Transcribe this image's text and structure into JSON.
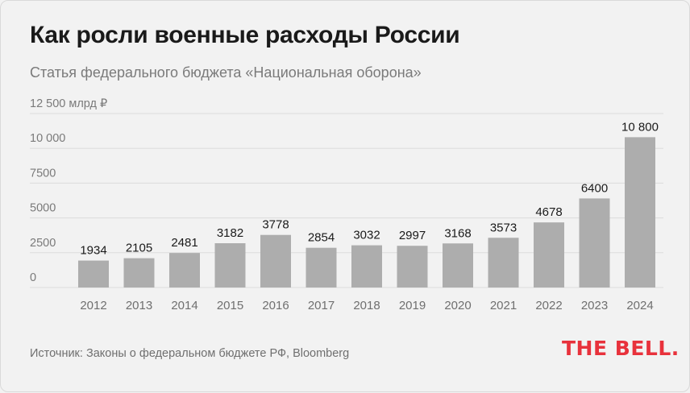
{
  "title": "Как росли военные расходы России",
  "subtitle": "Статья федерального бюджета «Национальная оборона»",
  "source": "Источник: Законы о федеральном бюджете РФ, Bloomberg",
  "logo_text": "THE BELL.",
  "colors": {
    "bar": "#adadad",
    "logo": "#e8323c",
    "background": "#f2f2f2"
  },
  "chart_data": {
    "type": "bar",
    "title": "Как росли военные расходы России",
    "subtitle": "Статья федерального бюджета «Национальная оборона»",
    "ylabel": "",
    "ylim": [
      0,
      12500
    ],
    "grid": true,
    "yticks": [
      {
        "value": 0,
        "label": "0"
      },
      {
        "value": 2500,
        "label": "2500"
      },
      {
        "value": 5000,
        "label": "5000"
      },
      {
        "value": 7500,
        "label": "7500"
      },
      {
        "value": 10000,
        "label": "10 000"
      },
      {
        "value": 12500,
        "label": "12 500 млрд ₽"
      }
    ],
    "categories": [
      "2012",
      "2013",
      "2014",
      "2015",
      "2016",
      "2017",
      "2018",
      "2019",
      "2020",
      "2021",
      "2022",
      "2023",
      "2024"
    ],
    "values": [
      1934,
      2105,
      2481,
      3182,
      3778,
      2854,
      3032,
      2997,
      3168,
      3573,
      4678,
      6400,
      10800
    ],
    "value_labels": [
      "1934",
      "2105",
      "2481",
      "3182",
      "3778",
      "2854",
      "3032",
      "2997",
      "3168",
      "3573",
      "4678",
      "6400",
      "10 800"
    ]
  }
}
